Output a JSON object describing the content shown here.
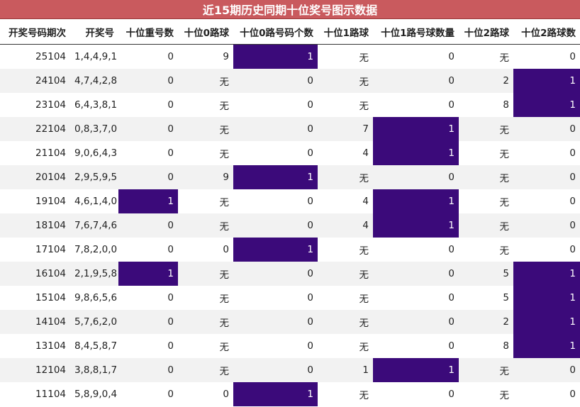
{
  "title": "近15期历史同期十位奖号图示数据",
  "colors": {
    "title_bg": "#c95a5e",
    "highlight": "#3b0a7a",
    "stripe": "#f2f2f2"
  },
  "columns": [
    "开奖号码期次",
    "开奖号",
    "十位重号数",
    "十位0路球",
    "十位0路号码个数",
    "十位1路球",
    "十位1路号球数量",
    "十位2路球",
    "十位2路球数"
  ],
  "rows": [
    [
      "25104",
      "1,4,4,9,1",
      "0",
      "9",
      "1",
      "无",
      "0",
      "无",
      "0"
    ],
    [
      "24104",
      "4,7,4,2,8",
      "0",
      "无",
      "0",
      "无",
      "0",
      "2",
      "1"
    ],
    [
      "23104",
      "6,4,3,8,1",
      "0",
      "无",
      "0",
      "无",
      "0",
      "8",
      "1"
    ],
    [
      "22104",
      "0,8,3,7,0",
      "0",
      "无",
      "0",
      "7",
      "1",
      "无",
      "0"
    ],
    [
      "21104",
      "9,0,6,4,3",
      "0",
      "无",
      "0",
      "4",
      "1",
      "无",
      "0"
    ],
    [
      "20104",
      "2,9,5,9,5",
      "0",
      "9",
      "1",
      "无",
      "0",
      "无",
      "0"
    ],
    [
      "19104",
      "4,6,1,4,0",
      "1",
      "无",
      "0",
      "4",
      "1",
      "无",
      "0"
    ],
    [
      "18104",
      "7,6,7,4,6",
      "0",
      "无",
      "0",
      "4",
      "1",
      "无",
      "0"
    ],
    [
      "17104",
      "7,8,2,0,0",
      "0",
      "0",
      "1",
      "无",
      "0",
      "无",
      "0"
    ],
    [
      "16104",
      "2,1,9,5,8",
      "1",
      "无",
      "0",
      "无",
      "0",
      "5",
      "1"
    ],
    [
      "15104",
      "9,8,6,5,6",
      "0",
      "无",
      "0",
      "无",
      "0",
      "5",
      "1"
    ],
    [
      "14104",
      "5,7,6,2,0",
      "0",
      "无",
      "0",
      "无",
      "0",
      "2",
      "1"
    ],
    [
      "13104",
      "8,4,5,8,7",
      "0",
      "无",
      "0",
      "无",
      "0",
      "8",
      "1"
    ],
    [
      "12104",
      "3,8,8,1,7",
      "0",
      "无",
      "0",
      "1",
      "1",
      "无",
      "0"
    ],
    [
      "11104",
      "5,8,9,0,4",
      "0",
      "0",
      "1",
      "无",
      "0",
      "无",
      "0"
    ]
  ]
}
